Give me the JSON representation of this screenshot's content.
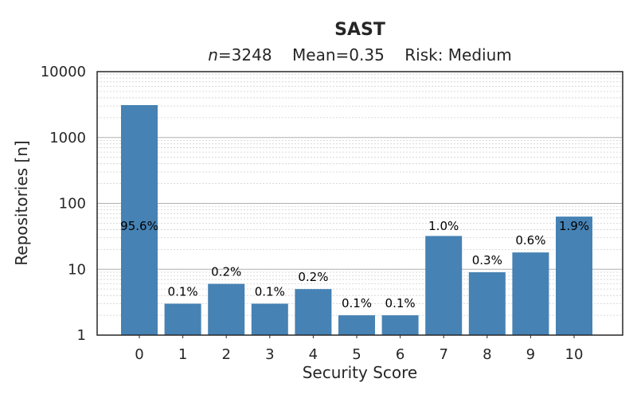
{
  "chart_data": {
    "type": "bar",
    "title": "SAST",
    "subtitle": {
      "n_label": "n",
      "n_value": "=3248",
      "mean": "Mean=0.35",
      "risk": "Risk: Medium"
    },
    "xlabel": "Security Score",
    "ylabel": "Repositories [n]",
    "yscale": "log",
    "ylim": [
      1,
      10000
    ],
    "yticks": [
      1,
      10,
      100,
      1000,
      10000
    ],
    "ytick_labels": [
      "1",
      "10",
      "100",
      "1000",
      "10000"
    ],
    "categories": [
      "0",
      "1",
      "2",
      "3",
      "4",
      "5",
      "6",
      "7",
      "8",
      "9",
      "10"
    ],
    "values": [
      3105,
      3,
      6,
      3,
      5,
      2,
      2,
      32,
      9,
      18,
      63
    ],
    "data_labels": [
      "95.6%",
      "0.1%",
      "0.2%",
      "0.1%",
      "0.2%",
      "0.1%",
      "0.1%",
      "1.0%",
      "0.3%",
      "0.6%",
      "1.9%"
    ],
    "grid": "major and minor horizontal lines",
    "colors": {
      "bar": "#4682b4",
      "grid_major": "#b0b0b0",
      "grid_minor": "#cfcfcf",
      "axis": "#262626"
    }
  }
}
